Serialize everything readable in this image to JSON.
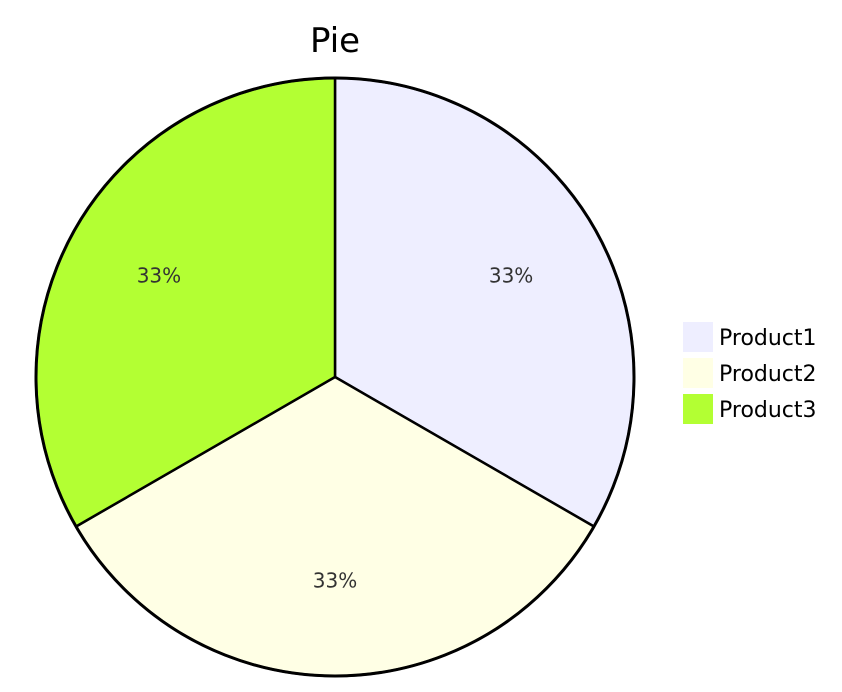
{
  "chart_data": {
    "type": "pie",
    "title": "Pie",
    "slices": [
      {
        "name": "Product1",
        "value": 1,
        "label": "33%",
        "color": "#EEEEFF"
      },
      {
        "name": "Product2",
        "value": 1,
        "label": "33%",
        "color": "#FFFFE5"
      },
      {
        "name": "Product3",
        "value": 1,
        "label": "33%",
        "color": "#B3FF33"
      }
    ],
    "legend": {
      "position": "right",
      "items": [
        "Product1",
        "Product2",
        "Product3"
      ]
    }
  }
}
